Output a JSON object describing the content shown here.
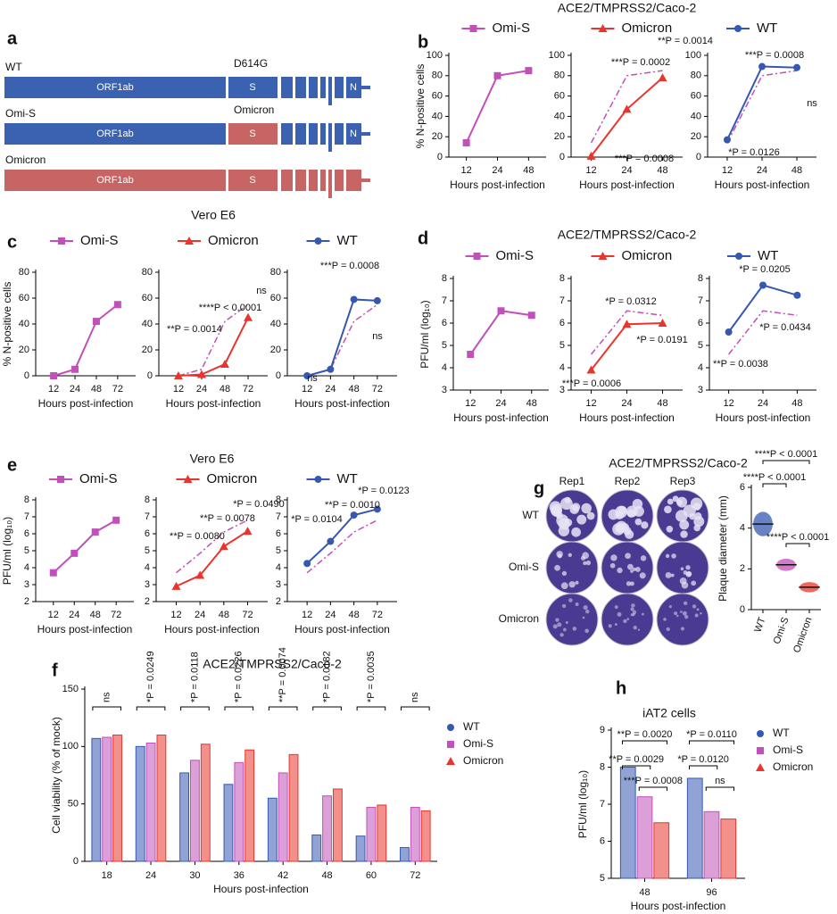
{
  "diagram": {
    "panel": "a",
    "annotations": [
      "D614G",
      "Omicron"
    ],
    "rows": [
      {
        "label": "WT",
        "orf": "ORF1ab",
        "s": "S",
        "n": "N"
      },
      {
        "label": "Omi-S",
        "orf": "ORF1ab",
        "s": "S",
        "n": "N"
      },
      {
        "label": "Omicron",
        "orf": "ORF1ab",
        "s": "S"
      }
    ]
  },
  "plaques": {
    "columns": [
      "Rep1",
      "Rep2",
      "Rep3"
    ],
    "rows": [
      "WT",
      "Omi-S",
      "Omicron"
    ]
  },
  "chart_data": [
    {
      "panel": "b",
      "type": "line",
      "ylabel": "% N-positive cells",
      "xlabel": "Hours post-infection",
      "categories": [
        "12",
        "24",
        "48"
      ],
      "ylim": [
        0,
        100
      ],
      "yticks": [
        0,
        20,
        40,
        60,
        80,
        100
      ],
      "series": [
        {
          "name": "Omi-S",
          "color": "#c150b8",
          "marker": "square",
          "values": [
            14,
            80,
            85
          ]
        }
      ]
    },
    {
      "type": "line",
      "title": "ACE2/TMPRSS2/Caco-2",
      "xlabel": "Hours post-infection",
      "categories": [
        "12",
        "24",
        "48"
      ],
      "ylim": [
        0,
        100
      ],
      "yticks": [
        0,
        20,
        40,
        60,
        80,
        100
      ],
      "series": [
        {
          "color": "#c150b8",
          "dash": true,
          "values": [
            14,
            80,
            85
          ]
        },
        {
          "name": "Omicron",
          "color": "#e8352e",
          "marker": "triangle",
          "values": [
            1,
            47,
            78
          ]
        }
      ],
      "annotations": [
        "**P = 0.0014",
        "***P = 0.0002",
        "***P = 0.0008"
      ]
    },
    {
      "type": "line",
      "xlabel": "Hours post-infection",
      "categories": [
        "12",
        "24",
        "48"
      ],
      "ylim": [
        0,
        100
      ],
      "yticks": [
        0,
        20,
        40,
        60,
        80,
        100
      ],
      "series": [
        {
          "color": "#c150b8",
          "dash": true,
          "values": [
            14,
            80,
            85
          ]
        },
        {
          "name": "WT",
          "color": "#3558b0",
          "marker": "circle",
          "values": [
            17,
            89,
            88
          ]
        }
      ],
      "annotations": [
        "***P = 0.0008",
        "ns",
        "*P = 0.0126"
      ]
    },
    {
      "panel": "c",
      "type": "line",
      "ylabel": "% N-positive cells",
      "xlabel": "Hours post-infection",
      "categories": [
        "12",
        "24",
        "48",
        "72"
      ],
      "ylim": [
        0,
        80
      ],
      "yticks": [
        0,
        20,
        40,
        60,
        80
      ],
      "series": [
        {
          "name": "Omi-S",
          "color": "#c150b8",
          "marker": "square",
          "values": [
            0,
            5,
            42,
            55
          ]
        }
      ]
    },
    {
      "type": "line",
      "title": "Vero E6",
      "xlabel": "Hours post-infection",
      "categories": [
        "12",
        "24",
        "48",
        "72"
      ],
      "ylim": [
        0,
        80
      ],
      "yticks": [
        0,
        20,
        40,
        60,
        80
      ],
      "series": [
        {
          "color": "#c150b8",
          "dash": true,
          "values": [
            0,
            5,
            42,
            55
          ]
        },
        {
          "name": "Omicron",
          "color": "#e8352e",
          "marker": "triangle",
          "values": [
            0,
            1,
            9,
            45
          ]
        }
      ],
      "annotations": [
        "****P < 0.0001",
        "**P = 0.0014",
        "ns"
      ]
    },
    {
      "type": "line",
      "xlabel": "Hours post-infection",
      "categories": [
        "12",
        "24",
        "48",
        "72"
      ],
      "ylim": [
        0,
        80
      ],
      "yticks": [
        0,
        20,
        40,
        60,
        80
      ],
      "series": [
        {
          "color": "#c150b8",
          "dash": true,
          "values": [
            0,
            5,
            42,
            55
          ]
        },
        {
          "name": "WT",
          "color": "#3558b0",
          "marker": "circle",
          "values": [
            0,
            5,
            59,
            58
          ]
        }
      ],
      "annotations": [
        "***P = 0.0008",
        "ns",
        "ns"
      ]
    },
    {
      "panel": "d",
      "type": "line",
      "ylabel": "PFU/ml (log₁₀)",
      "xlabel": "Hours post-infection",
      "categories": [
        "12",
        "24",
        "48"
      ],
      "ylim": [
        3,
        8
      ],
      "yticks": [
        3,
        4,
        5,
        6,
        7,
        8
      ],
      "series": [
        {
          "name": "Omi-S",
          "color": "#c150b8",
          "marker": "square",
          "values": [
            4.6,
            6.55,
            6.35
          ]
        }
      ]
    },
    {
      "type": "line",
      "title": "ACE2/TMPRSS2/Caco-2",
      "xlabel": "Hours post-infection",
      "categories": [
        "12",
        "24",
        "48"
      ],
      "ylim": [
        3,
        8
      ],
      "yticks": [
        3,
        4,
        5,
        6,
        7,
        8
      ],
      "series": [
        {
          "color": "#c150b8",
          "dash": true,
          "values": [
            4.6,
            6.55,
            6.35
          ]
        },
        {
          "name": "Omicron",
          "color": "#e8352e",
          "marker": "triangle",
          "values": [
            3.9,
            5.95,
            6
          ]
        }
      ],
      "annotations": [
        "*P = 0.0312",
        "*P = 0.0191",
        "***P = 0.0006"
      ]
    },
    {
      "type": "line",
      "xlabel": "Hours post-infection",
      "categories": [
        "12",
        "24",
        "48"
      ],
      "ylim": [
        3,
        8
      ],
      "yticks": [
        3,
        4,
        5,
        6,
        7,
        8
      ],
      "series": [
        {
          "color": "#c150b8",
          "dash": true,
          "values": [
            4.6,
            6.55,
            6.35
          ]
        },
        {
          "name": "WT",
          "color": "#3558b0",
          "marker": "circle",
          "values": [
            5.6,
            7.7,
            7.25
          ]
        }
      ],
      "annotations": [
        "*P = 0.0205",
        "*P = 0.0434",
        "**P = 0.0038"
      ]
    },
    {
      "panel": "e",
      "type": "line",
      "ylabel": "PFU/ml (log₁₀)",
      "xlabel": "Hours post-infection",
      "categories": [
        "12",
        "24",
        "48",
        "72"
      ],
      "ylim": [
        2,
        8
      ],
      "yticks": [
        2,
        3,
        4,
        5,
        6,
        7,
        8
      ],
      "series": [
        {
          "name": "Omi-S",
          "color": "#c150b8",
          "marker": "square",
          "values": [
            3.7,
            4.85,
            6.1,
            6.8
          ]
        }
      ]
    },
    {
      "type": "line",
      "title": "Vero E6",
      "xlabel": "Hours post-infection",
      "categories": [
        "12",
        "24",
        "48",
        "72"
      ],
      "ylim": [
        2,
        8
      ],
      "yticks": [
        2,
        3,
        4,
        5,
        6,
        7,
        8
      ],
      "series": [
        {
          "color": "#c150b8",
          "dash": true,
          "values": [
            3.7,
            4.85,
            6.1,
            6.8
          ]
        },
        {
          "name": "Omicron",
          "color": "#e8352e",
          "marker": "triangle",
          "values": [
            2.9,
            3.55,
            5.25,
            6.15
          ]
        }
      ],
      "annotations": [
        "*P = 0.0490",
        "**P = 0.0078",
        "**P = 0.0080"
      ]
    },
    {
      "type": "line",
      "xlabel": "Hours post-infection",
      "categories": [
        "12",
        "24",
        "48",
        "72"
      ],
      "ylim": [
        2,
        8
      ],
      "yticks": [
        2,
        3,
        4,
        5,
        6,
        7,
        8
      ],
      "series": [
        {
          "color": "#c150b8",
          "dash": true,
          "values": [
            3.7,
            4.85,
            6.1,
            6.8
          ]
        },
        {
          "name": "WT",
          "color": "#3558b0",
          "marker": "circle",
          "values": [
            4.25,
            5.55,
            7.1,
            7.45
          ]
        }
      ],
      "annotations": [
        "*P = 0.0123",
        "**P = 0.0010",
        "*P = 0.0104"
      ]
    },
    {
      "panel": "f",
      "type": "bar",
      "title": "ACE2/TMPRSS2/Caco-2",
      "ylabel": "Cell viability (% of mock)",
      "xlabel": "Hours post-infection",
      "categories": [
        "18",
        "24",
        "30",
        "36",
        "42",
        "48",
        "60",
        "72"
      ],
      "ylim": [
        0,
        150
      ],
      "yticks": [
        0,
        50,
        100,
        150
      ],
      "series": [
        {
          "name": "WT",
          "color": "#3558b0",
          "marker": "circle",
          "values": [
            107,
            100,
            77,
            67,
            55,
            23,
            22,
            12
          ]
        },
        {
          "name": "Omi-S",
          "color": "#c150b8",
          "marker": "square",
          "values": [
            108,
            103,
            88,
            86,
            77,
            57,
            47,
            47
          ]
        },
        {
          "name": "Omicron",
          "color": "#e8352e",
          "marker": "triangle",
          "values": [
            110,
            110,
            102,
            97,
            93,
            63,
            49,
            44
          ]
        }
      ],
      "annotations": [
        "ns",
        "*P = 0.0249",
        "*P = 0.0118",
        "*P = 0.0226",
        "**P = 0.0074",
        "*P = 0.0182",
        "*P = 0.0035",
        "ns"
      ]
    },
    {
      "panel": "g",
      "type": "dot",
      "title": "ACE2/TMPRSS2/Caco-2",
      "ylabel": "Plaque diameter (mm)",
      "categories": [
        "WT",
        "Omi-S",
        "Omicron"
      ],
      "values": [
        4.2,
        2.2,
        1.1
      ],
      "errors": [
        0.6,
        0.3,
        0.25
      ],
      "colors": [
        "#3558b0",
        "#c150b8",
        "#e8352e"
      ],
      "ylim": [
        0,
        6
      ],
      "yticks": [
        0,
        2,
        4,
        6
      ],
      "annotations": [
        "****P < 0.0001",
        "****P < 0.0001",
        "****P < 0.0001"
      ]
    },
    {
      "panel": "h",
      "type": "bar",
      "title": "iAT2 cells",
      "ylabel": "PFU/ml (log₁₀)",
      "xlabel": "Hours post-infection",
      "categories": [
        "48",
        "96"
      ],
      "ylim": [
        5,
        9
      ],
      "yticks": [
        5,
        6,
        7,
        8,
        9
      ],
      "series": [
        {
          "name": "WT",
          "color": "#3558b0",
          "marker": "circle",
          "values": [
            8,
            7.7
          ]
        },
        {
          "name": "Omi-S",
          "color": "#c150b8",
          "marker": "square",
          "values": [
            7.2,
            6.8
          ]
        },
        {
          "name": "Omicron",
          "color": "#e8352e",
          "marker": "triangle",
          "values": [
            6.5,
            6.6
          ]
        }
      ],
      "annotations": [
        "**P = 0.0020",
        "**P = 0.0029",
        "***P = 0.0008",
        "*P = 0.0110",
        "*P = 0.0120",
        "ns"
      ]
    }
  ]
}
